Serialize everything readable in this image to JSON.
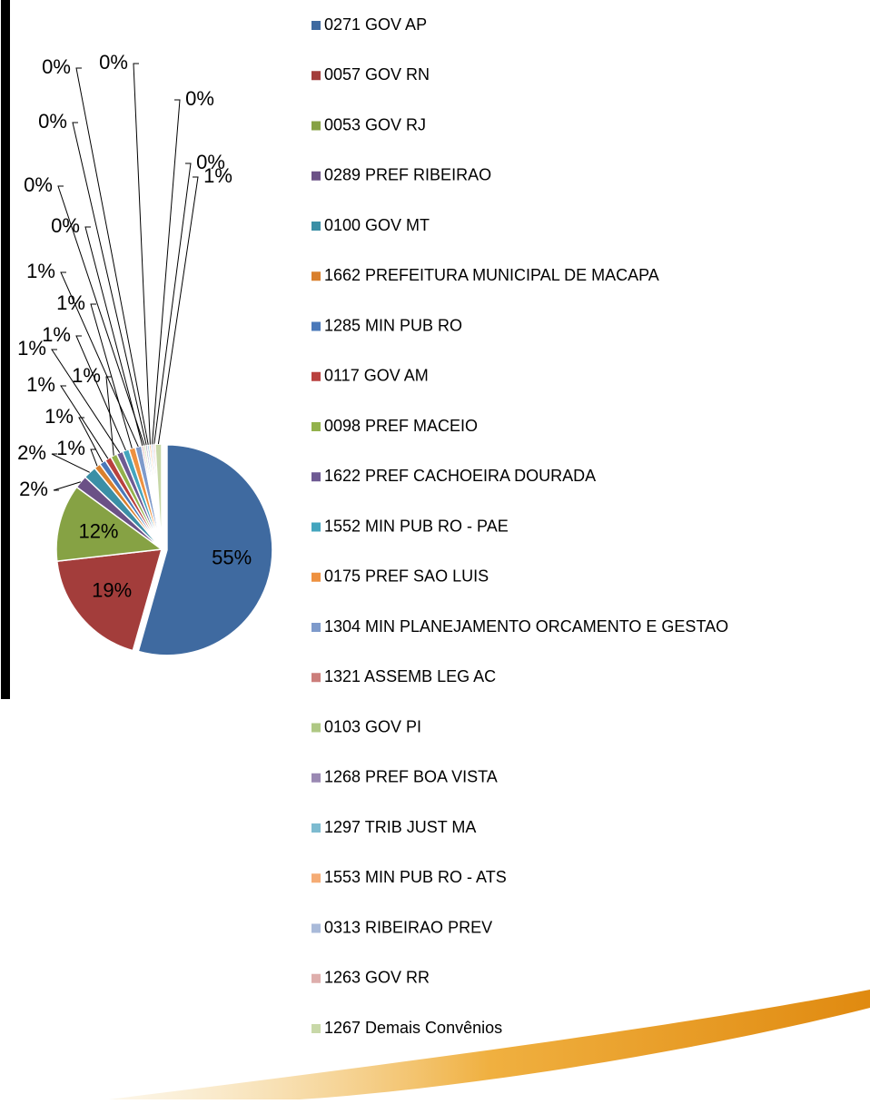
{
  "chart_data": {
    "type": "pie",
    "categories": [
      "0271 GOV AP",
      "0057 GOV RN",
      "0053 GOV RJ",
      "0289 PREF RIBEIRAO",
      "0100 GOV MT",
      "1662 PREFEITURA MUNICIPAL DE MACAPA",
      "1285 MIN PUB RO",
      "0117 GOV AM",
      "0098 PREF MACEIO",
      "1622 PREF CACHOEIRA DOURADA",
      "1552 MIN PUB RO - PAE",
      "0175 PREF SAO LUIS",
      "1304 MIN PLANEJAMENTO ORCAMENTO E GESTAO",
      "1321 ASSEMB LEG AC",
      "0103 GOV PI",
      "1268 PREF BOA VISTA",
      "1297 TRIB JUST MA",
      "1553 MIN PUB RO - ATS",
      "0313 RIBEIRAO PREV",
      "1263 GOV RR",
      "1267 Demais Convênios"
    ],
    "values": [
      55,
      19,
      12,
      2,
      2,
      1,
      1,
      1,
      1,
      1,
      1,
      1,
      1,
      0.3,
      0.3,
      0.3,
      0.3,
      0.3,
      0.3,
      0.3,
      1
    ],
    "value_labels": [
      "55%",
      "19%",
      "12%",
      "2%",
      "2%",
      "1%",
      "1%",
      "1%",
      "1%",
      "1%",
      "1%",
      "1%",
      "1%",
      "0%",
      "0%",
      "0%",
      "0%",
      "0%",
      "0%",
      "0%",
      "1%"
    ],
    "colors": [
      "#3F6AA0",
      "#A33D3B",
      "#86A244",
      "#6B5186",
      "#3B8FA6",
      "#D9802D",
      "#4A78B9",
      "#B9413E",
      "#93B24C",
      "#6E5A93",
      "#44A5BE",
      "#EE9140",
      "#7E9ACB",
      "#CC7E7B",
      "#AFC884",
      "#9A89B3",
      "#7DBBD0",
      "#F5AC75",
      "#A9BAD9",
      "#DEAEAC",
      "#C8D8A8"
    ]
  }
}
